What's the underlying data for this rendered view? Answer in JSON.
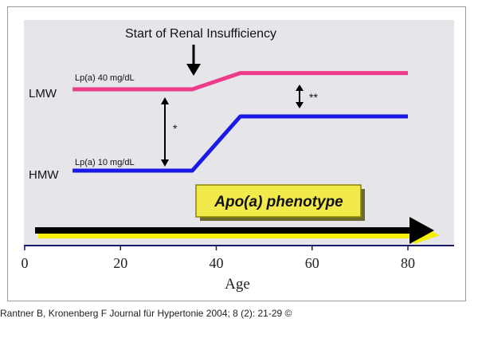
{
  "chart_data": {
    "type": "line",
    "title": "Start of Renal Insufficiency",
    "xlabel": "Age",
    "ylabel": "",
    "xlim": [
      0,
      90
    ],
    "x_ticks": [
      0,
      20,
      40,
      60,
      80
    ],
    "phenotype_box_label": "Apo(a) phenotype",
    "series": [
      {
        "name": "LMW",
        "start_label": "Lp(a) 40 mg/dL",
        "color": "#ee3c8c",
        "points": [
          [
            10,
            40
          ],
          [
            35,
            40
          ],
          [
            45,
            46
          ],
          [
            80,
            46
          ]
        ]
      },
      {
        "name": "HMW",
        "start_label": "Lp(a) 10 mg/dL",
        "color": "#1a1ae6",
        "points": [
          [
            10,
            10
          ],
          [
            35,
            10
          ],
          [
            45,
            30
          ],
          [
            80,
            30
          ]
        ]
      }
    ],
    "onset_age": 35,
    "annotations": [
      {
        "label": "*",
        "at_age": 30,
        "between": [
          "HMW",
          "LMW"
        ]
      },
      {
        "label": "**",
        "at_age": 58,
        "between": [
          "HMW",
          "LMW"
        ]
      }
    ]
  },
  "caption": "Rantner B, Kronenberg F Journal für Hypertonie 2004; 8 (2): 21-29 ©",
  "colors": {
    "plot_background": "#e6e6ea",
    "axis_line": "#1a1a66",
    "arrow": "#000000",
    "arrow_shadow": "#f5f000",
    "box_fill": "#f2ea4a"
  }
}
